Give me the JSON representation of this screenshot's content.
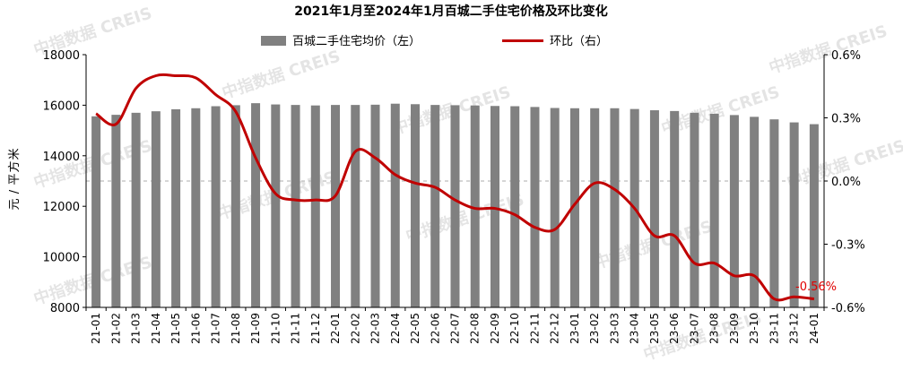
{
  "chart_data": {
    "type": "bar",
    "title": "2021年1月至2024年1月百城二手住宅价格及环比变化",
    "ylabel_left_chars": [
      "元",
      "/",
      "平",
      "方",
      "米"
    ],
    "ylim_left": [
      8000,
      18000
    ],
    "yticks_left": [
      8000,
      10000,
      12000,
      14000,
      16000,
      18000
    ],
    "ylim_right": [
      -0.6,
      0.6
    ],
    "yticks_right": [
      -0.6,
      -0.3,
      0.0,
      0.3,
      0.6
    ],
    "yticks_right_labels": [
      "-0.6%",
      "-0.3%",
      "0.0%",
      "0.3%",
      "0.6%"
    ],
    "grid": "dashed line at 0.0%",
    "legend_placement": "top",
    "categories": [
      "21-01",
      "21-02",
      "21-03",
      "21-04",
      "21-05",
      "21-06",
      "21-07",
      "21-08",
      "21-09",
      "21-10",
      "21-11",
      "21-12",
      "22-01",
      "22-02",
      "22-03",
      "22-04",
      "22-05",
      "22-06",
      "22-07",
      "22-08",
      "22-09",
      "22-10",
      "22-11",
      "22-12",
      "23-01",
      "23-02",
      "23-03",
      "23-04",
      "23-05",
      "23-06",
      "23-07",
      "23-08",
      "23-09",
      "23-10",
      "23-11",
      "23-12",
      "24-01"
    ],
    "series": [
      {
        "name": "百城二手住宅均价（左）",
        "type": "bar",
        "axis": "left",
        "color": "#808080",
        "values": [
          15560,
          15620,
          15700,
          15760,
          15840,
          15880,
          15960,
          16000,
          16080,
          16030,
          16010,
          15990,
          16010,
          16010,
          16020,
          16060,
          16040,
          16010,
          16000,
          15990,
          15970,
          15960,
          15930,
          15890,
          15880,
          15880,
          15880,
          15850,
          15800,
          15770,
          15700,
          15660,
          15610,
          15540,
          15440,
          15320,
          15250
        ]
      },
      {
        "name": "环比（右）",
        "type": "line",
        "axis": "right",
        "color": "#c00000",
        "values": [
          0.32,
          0.27,
          0.44,
          0.5,
          0.5,
          0.49,
          0.41,
          0.33,
          0.11,
          -0.06,
          -0.09,
          -0.09,
          -0.07,
          0.14,
          0.11,
          0.03,
          -0.01,
          -0.03,
          -0.09,
          -0.13,
          -0.13,
          -0.16,
          -0.22,
          -0.23,
          -0.11,
          -0.01,
          -0.04,
          -0.13,
          -0.26,
          -0.26,
          -0.39,
          -0.39,
          -0.45,
          -0.45,
          -0.56,
          -0.55,
          -0.56
        ]
      }
    ],
    "annotation": {
      "label": "-0.56%",
      "color": "#ff0000"
    },
    "watermark": "中指数据 CREIS"
  }
}
